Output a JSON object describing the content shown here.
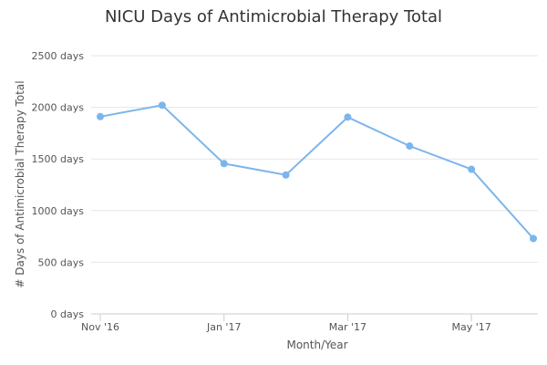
{
  "chart_data": {
    "type": "line",
    "title": "NICU Days of Antimicrobial Therapy Total",
    "xlabel": "Month/Year",
    "ylabel": "# Days of Antimicrobial Therapy Total",
    "x": [
      "Nov '16",
      "Dec '16",
      "Jan '17",
      "Feb '17",
      "Mar '17",
      "Apr '17",
      "May '17",
      "Jun '17"
    ],
    "x_tick_labels": [
      "Nov '16",
      "Jan '17",
      "Mar '17",
      "May '17"
    ],
    "y_tick_labels": [
      "0 days",
      "500 days",
      "1000 days",
      "1500 days",
      "2000 days",
      "2500 days"
    ],
    "ylim": [
      0,
      2500
    ],
    "grid": true,
    "legend": "none",
    "series": [
      {
        "values": [
          1910,
          2020,
          1455,
          1345,
          1905,
          1625,
          1400,
          730
        ],
        "color": "#7cb5ec"
      }
    ]
  }
}
